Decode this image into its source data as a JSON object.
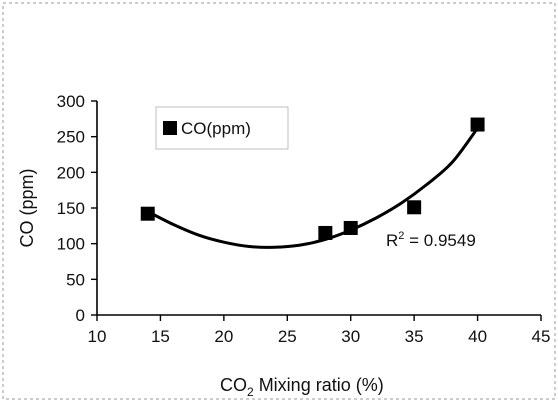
{
  "chart_data": {
    "type": "scatter",
    "xlabel_prefix": "CO",
    "xlabel_sub": "2",
    "xlabel_suffix": " Mixing ratio (%)",
    "ylabel": "CO (ppm)",
    "xlim": [
      10,
      45
    ],
    "ylim": [
      0,
      300
    ],
    "xticks": [
      10,
      15,
      20,
      25,
      30,
      35,
      40,
      45
    ],
    "yticks": [
      0,
      50,
      100,
      150,
      200,
      250,
      300
    ],
    "grid": false,
    "legend": {
      "position": "top-left",
      "label": "CO(ppm)"
    },
    "series": [
      {
        "name": "CO(ppm)",
        "marker": "square",
        "color": "#000000",
        "x": [
          14,
          28,
          30,
          35,
          40
        ],
        "y": [
          142,
          115,
          122,
          151,
          267
        ]
      }
    ],
    "trendline": {
      "type": "polynomial",
      "r2_base": "R",
      "r2_sup": "2",
      "r2_value": " = 0.9549",
      "points": [
        [
          14,
          145
        ],
        [
          16,
          127
        ],
        [
          18,
          112
        ],
        [
          20,
          102
        ],
        [
          22,
          96
        ],
        [
          24,
          95
        ],
        [
          26,
          98
        ],
        [
          28,
          106
        ],
        [
          30,
          119
        ],
        [
          32,
          136
        ],
        [
          34,
          157
        ],
        [
          36,
          183
        ],
        [
          38,
          214
        ],
        [
          40,
          262
        ]
      ]
    }
  }
}
